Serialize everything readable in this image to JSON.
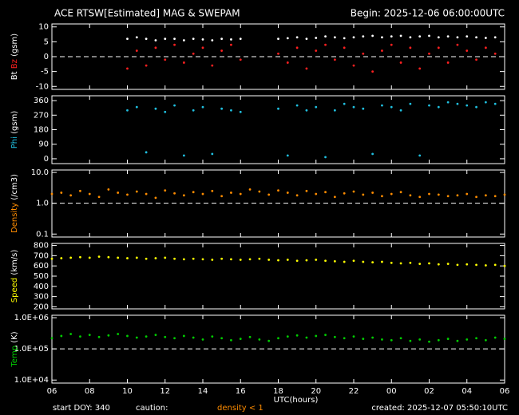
{
  "chart_data": [
    {
      "type": "scatter",
      "title": "ACE RTSW[Estimated] MAG & SWEPAM",
      "subtitle": "Begin: 2025-12-06 06:00:00UTC",
      "x": [
        4,
        4.5,
        5,
        5.5,
        6,
        6.5,
        7,
        7.5,
        8,
        8.5,
        9,
        9.5,
        10,
        12,
        12.5,
        13,
        13.5,
        14,
        14.5,
        15,
        15.5,
        16,
        16.5,
        17,
        17.5,
        18,
        18.5,
        19,
        19.5,
        20,
        20.5,
        21,
        21.5,
        22,
        22.5,
        23,
        23.5
      ],
      "series": [
        {
          "name": "Bt",
          "color": "#ffffff",
          "values": [
            6,
            6.5,
            6,
            5.5,
            6,
            6,
            5.5,
            6,
            5.8,
            5.5,
            6,
            5.8,
            6,
            6,
            6.2,
            6.5,
            6,
            6.3,
            6.8,
            6.5,
            6.2,
            6.5,
            6.8,
            7,
            6.5,
            6.8,
            7,
            6.5,
            6.8,
            7,
            6.5,
            6.8,
            6.5,
            6.8,
            6.5,
            6.3,
            6.5
          ]
        },
        {
          "name": "Bz",
          "color": "#ff2020",
          "values": [
            -4,
            2,
            -3,
            3,
            -1,
            4,
            -2,
            1,
            3,
            -3,
            2,
            4,
            -1,
            1,
            -2,
            3,
            -4,
            2,
            4,
            -1,
            3,
            -3,
            1,
            -5,
            2,
            4,
            -2,
            3,
            -4,
            1,
            3,
            -2,
            4,
            2,
            -1,
            3,
            1
          ]
        }
      ],
      "y_unit": "(gsm)",
      "ylim": [
        -11,
        11
      ],
      "yticks": [
        10,
        5,
        0,
        -5,
        -10
      ],
      "hline": 0,
      "log": false
    },
    {
      "type": "scatter",
      "x": [
        4,
        4.5,
        5,
        5.5,
        6,
        6.5,
        7,
        7.5,
        8,
        8.5,
        9,
        9.5,
        10,
        12,
        12.5,
        13,
        13.5,
        14,
        14.5,
        15,
        15.5,
        16,
        16.5,
        17,
        17.5,
        18,
        18.5,
        19,
        19.5,
        20,
        20.5,
        21,
        21.5,
        22,
        22.5,
        23,
        23.5
      ],
      "series": [
        {
          "name": "Phi",
          "color": "#20c0e0",
          "values": [
            300,
            320,
            40,
            310,
            290,
            330,
            20,
            300,
            320,
            30,
            310,
            300,
            290,
            310,
            20,
            330,
            300,
            320,
            10,
            300,
            340,
            320,
            310,
            30,
            330,
            320,
            300,
            340,
            20,
            330,
            320,
            350,
            340,
            330,
            320,
            350,
            340
          ]
        }
      ],
      "y_unit": "(gsm)",
      "ylim": [
        -30,
        390
      ],
      "yticks": [
        360,
        270,
        180,
        90,
        0
      ],
      "log": false
    },
    {
      "type": "scatter",
      "x": [
        0,
        0.5,
        1,
        1.5,
        2,
        2.5,
        3,
        3.5,
        4,
        4.5,
        5,
        5.5,
        6,
        6.5,
        7,
        7.5,
        8,
        8.5,
        9,
        9.5,
        10,
        10.5,
        11,
        11.5,
        12,
        12.5,
        13,
        13.5,
        14,
        14.5,
        15,
        15.5,
        16,
        16.5,
        17,
        17.5,
        18,
        18.5,
        19,
        19.5,
        20,
        20.5,
        21,
        21.5,
        22,
        22.5,
        23,
        23.5,
        24
      ],
      "series": [
        {
          "name": "Density",
          "color": "#ff8c00",
          "values": [
            2,
            2.2,
            1.8,
            2.5,
            2,
            1.6,
            2.8,
            2.2,
            1.9,
            2.4,
            2,
            1.5,
            2.6,
            2.1,
            1.8,
            2.3,
            2,
            2.5,
            1.7,
            2.2,
            2,
            2.8,
            2.4,
            1.9,
            2.6,
            2.2,
            1.8,
            2.5,
            2,
            2.3,
            1.6,
            2.1,
            2.4,
            1.9,
            2.2,
            1.7,
            2,
            2.3,
            1.8,
            1.6,
            2,
            1.9,
            1.7,
            1.8,
            2,
            1.6,
            1.8,
            1.7,
            1.9
          ]
        }
      ],
      "y_unit": "(/cm3)",
      "ylim": [
        0.08,
        12
      ],
      "yticks": [
        {
          "value": 10,
          "label": "10.0"
        },
        {
          "value": 1,
          "label": "1.0"
        },
        0.1
      ],
      "hline": 1,
      "log": true
    },
    {
      "type": "scatter",
      "x": [
        0,
        0.5,
        1,
        1.5,
        2,
        2.5,
        3,
        3.5,
        4,
        4.5,
        5,
        5.5,
        6,
        6.5,
        7,
        7.5,
        8,
        8.5,
        9,
        9.5,
        10,
        10.5,
        11,
        11.5,
        12,
        12.5,
        13,
        13.5,
        14,
        14.5,
        15,
        15.5,
        16,
        16.5,
        17,
        17.5,
        18,
        18.5,
        19,
        19.5,
        20,
        20.5,
        21,
        21.5,
        22,
        22.5,
        23,
        23.5,
        24
      ],
      "series": [
        {
          "name": "Speed",
          "color": "#ffff00",
          "values": [
            670,
            675,
            680,
            685,
            680,
            690,
            685,
            680,
            675,
            680,
            670,
            675,
            680,
            670,
            665,
            670,
            665,
            660,
            670,
            665,
            660,
            665,
            670,
            660,
            655,
            660,
            650,
            655,
            660,
            650,
            645,
            640,
            650,
            640,
            635,
            640,
            630,
            625,
            630,
            620,
            625,
            615,
            620,
            610,
            615,
            610,
            605,
            610,
            600
          ]
        }
      ],
      "y_unit": "(km/s)",
      "ylim": [
        180,
        820
      ],
      "yticks": [
        800,
        700,
        600,
        500,
        400,
        300,
        200
      ],
      "log": false
    },
    {
      "type": "scatter",
      "x": [
        0,
        0.5,
        1,
        1.5,
        2,
        2.5,
        3,
        3.5,
        4,
        4.5,
        5,
        5.5,
        6,
        6.5,
        7,
        7.5,
        8,
        8.5,
        9,
        9.5,
        10,
        10.5,
        11,
        11.5,
        12,
        12.5,
        13,
        13.5,
        14,
        14.5,
        15,
        15.5,
        16,
        16.5,
        17,
        17.5,
        18,
        18.5,
        19,
        19.5,
        20,
        20.5,
        21,
        21.5,
        22,
        22.5,
        23,
        23.5,
        24
      ],
      "series": [
        {
          "name": "Temp",
          "color": "#00cc00",
          "values": [
            220000,
            260000,
            300000,
            250000,
            280000,
            240000,
            270000,
            300000,
            260000,
            230000,
            250000,
            280000,
            240000,
            220000,
            260000,
            230000,
            200000,
            250000,
            220000,
            190000,
            210000,
            240000,
            200000,
            180000,
            220000,
            250000,
            270000,
            230000,
            260000,
            280000,
            240000,
            220000,
            250000,
            210000,
            230000,
            200000,
            190000,
            220000,
            180000,
            200000,
            170000,
            190000,
            210000,
            180000,
            200000,
            220000,
            190000,
            230000,
            210000
          ]
        }
      ],
      "y_unit": "(K)",
      "ylim": [
        8000,
        1200000
      ],
      "yticks": [
        {
          "value": 1000000,
          "label": "1.0E+06"
        },
        {
          "value": 100000,
          "label": "1.0E+05"
        },
        {
          "value": 10000,
          "label": "1.0E+04"
        }
      ],
      "hline": 100000,
      "log": true,
      "x_label": "UTC(hours)",
      "xlim": [
        0,
        24
      ],
      "xticks": [
        {
          "value": 0,
          "label": "06"
        },
        {
          "value": 2,
          "label": "08"
        },
        {
          "value": 4,
          "label": "10"
        },
        {
          "value": 6,
          "label": "12"
        },
        {
          "value": 8,
          "label": "14"
        },
        {
          "value": 10,
          "label": "16"
        },
        {
          "value": 12,
          "label": "18"
        },
        {
          "value": 14,
          "label": "20"
        },
        {
          "value": 16,
          "label": "22"
        },
        {
          "value": 18,
          "label": "00"
        },
        {
          "value": 20,
          "label": "02"
        },
        {
          "value": 22,
          "label": "04"
        },
        {
          "value": 24,
          "label": "06"
        }
      ]
    }
  ],
  "footer": {
    "start": "start DOY: 340",
    "caution": "caution:",
    "note": "density < 1",
    "created": "created: 2025-12-07 05:50:10UTC"
  }
}
